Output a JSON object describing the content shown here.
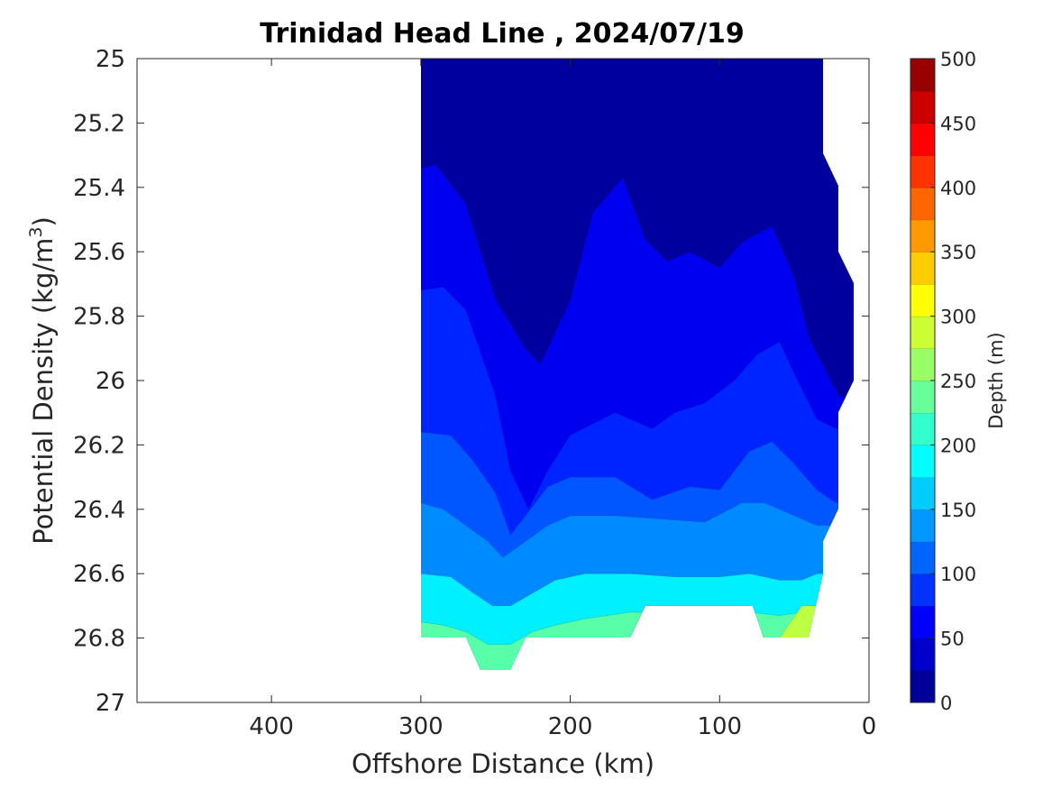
{
  "chart_data": {
    "type": "contour",
    "title": "Trinidad Head Line , 2024/07/19",
    "xlabel": "Offshore Distance (km)",
    "ylabel": "Potential Density (kg/m",
    "ylabel_sup": "3",
    "ylabel_close": ")",
    "xlim": [
      490,
      0
    ],
    "ylim": [
      27,
      25
    ],
    "x_ticks": [
      400,
      300,
      200,
      100,
      0
    ],
    "y_ticks": [
      25,
      25.2,
      25.4,
      25.6,
      25.8,
      26,
      26.2,
      26.4,
      26.6,
      26.8,
      27
    ],
    "y_tick_labels": [
      "25",
      "25.2",
      "25.4",
      "25.6",
      "25.8",
      "26",
      "26.2",
      "26.4",
      "26.6",
      "26.8",
      "27"
    ],
    "colorbar": {
      "label": "Depth (m)",
      "range": [
        0,
        500
      ],
      "ticks": [
        0,
        50,
        100,
        150,
        200,
        250,
        300,
        350,
        400,
        450,
        500
      ],
      "levels": 20,
      "colormap": "jet"
    },
    "depth_contours": [
      {
        "level": 25,
        "boundary": [
          [
            300,
            25.34
          ],
          [
            290,
            25.33
          ],
          [
            270,
            25.45
          ],
          [
            250,
            25.75
          ],
          [
            230,
            25.9
          ],
          [
            220,
            25.95
          ],
          [
            210,
            25.85
          ],
          [
            200,
            25.75
          ],
          [
            185,
            25.48
          ],
          [
            165,
            25.37
          ],
          [
            150,
            25.56
          ],
          [
            135,
            25.63
          ],
          [
            120,
            25.6
          ],
          [
            100,
            25.65
          ],
          [
            85,
            25.57
          ],
          [
            65,
            25.52
          ],
          [
            50,
            25.68
          ],
          [
            40,
            25.87
          ],
          [
            30,
            25.96
          ],
          [
            20,
            26.05
          ]
        ]
      },
      {
        "level": 50,
        "boundary": [
          [
            300,
            25.72
          ],
          [
            285,
            25.71
          ],
          [
            270,
            25.78
          ],
          [
            250,
            26.05
          ],
          [
            240,
            26.28
          ],
          [
            228,
            26.4
          ],
          [
            215,
            26.28
          ],
          [
            200,
            26.17
          ],
          [
            170,
            26.1
          ],
          [
            145,
            26.15
          ],
          [
            130,
            26.1
          ],
          [
            110,
            26.07
          ],
          [
            90,
            26.0
          ],
          [
            75,
            25.92
          ],
          [
            60,
            25.88
          ],
          [
            50,
            25.98
          ],
          [
            35,
            26.12
          ],
          [
            22,
            26.15
          ]
        ]
      },
      {
        "level": 75,
        "boundary": [
          [
            300,
            26.16
          ],
          [
            280,
            26.17
          ],
          [
            265,
            26.25
          ],
          [
            250,
            26.35
          ],
          [
            240,
            26.48
          ],
          [
            230,
            26.42
          ],
          [
            215,
            26.33
          ],
          [
            200,
            26.3
          ],
          [
            170,
            26.3
          ],
          [
            145,
            26.37
          ],
          [
            120,
            26.33
          ],
          [
            100,
            26.34
          ],
          [
            80,
            26.22
          ],
          [
            65,
            26.19
          ],
          [
            50,
            26.26
          ],
          [
            35,
            26.34
          ],
          [
            22,
            26.38
          ]
        ]
      },
      {
        "level": 100,
        "boundary": [
          [
            300,
            26.38
          ],
          [
            285,
            26.4
          ],
          [
            270,
            26.45
          ],
          [
            255,
            26.5
          ],
          [
            245,
            26.55
          ],
          [
            230,
            26.5
          ],
          [
            215,
            26.45
          ],
          [
            200,
            26.42
          ],
          [
            170,
            26.42
          ],
          [
            140,
            26.43
          ],
          [
            110,
            26.44
          ],
          [
            85,
            26.38
          ],
          [
            70,
            26.38
          ],
          [
            50,
            26.42
          ],
          [
            35,
            26.45
          ],
          [
            22,
            26.45
          ]
        ]
      },
      {
        "level": 150,
        "boundary": [
          [
            300,
            26.6
          ],
          [
            280,
            26.61
          ],
          [
            265,
            26.66
          ],
          [
            252,
            26.7
          ],
          [
            240,
            26.7
          ],
          [
            225,
            26.66
          ],
          [
            210,
            26.62
          ],
          [
            190,
            26.6
          ],
          [
            160,
            26.6
          ],
          [
            130,
            26.61
          ],
          [
            100,
            26.61
          ],
          [
            80,
            26.6
          ],
          [
            60,
            26.62
          ],
          [
            45,
            26.62
          ],
          [
            35,
            26.6
          ]
        ]
      },
      {
        "level": 200,
        "boundary": [
          [
            300,
            26.75
          ],
          [
            285,
            26.76
          ],
          [
            270,
            26.78
          ],
          [
            255,
            26.82
          ],
          [
            240,
            26.82
          ],
          [
            225,
            26.78
          ],
          [
            210,
            26.76
          ],
          [
            190,
            26.74
          ],
          [
            160,
            26.72
          ],
          [
            130,
            26.72
          ],
          [
            100,
            26.72
          ],
          [
            80,
            26.72
          ],
          [
            60,
            26.73
          ],
          [
            45,
            26.72
          ]
        ]
      },
      {
        "level": 250,
        "boundary": [
          [
            300,
            26.8
          ],
          [
            270,
            26.8
          ],
          [
            260,
            26.9
          ],
          [
            240,
            26.9
          ],
          [
            225,
            26.8
          ],
          [
            160,
            26.8
          ],
          [
            150,
            26.7
          ],
          [
            80,
            26.7
          ],
          [
            70,
            26.8
          ],
          [
            60,
            26.8
          ],
          [
            45,
            26.7
          ]
        ]
      }
    ]
  }
}
